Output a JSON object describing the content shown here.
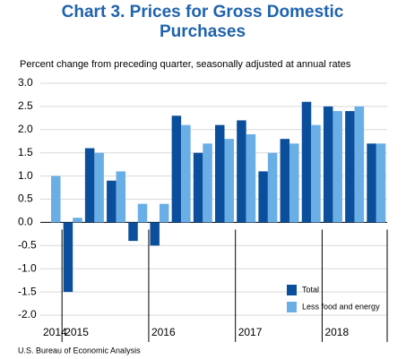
{
  "chart_data": {
    "type": "bar",
    "title": "Chart 3. Prices for Gross Domestic",
    "title_line2": "Purchases",
    "subtitle": "Percent change from preceding quarter, seasonally adjusted at annual rates",
    "source": "U.S. Bureau of Economic Analysis",
    "categories": [
      "2014",
      "2015",
      null,
      null,
      null,
      "2016",
      null,
      null,
      null,
      "2017",
      null,
      null,
      null,
      "2018",
      null,
      null
    ],
    "series": [
      {
        "name": "Total",
        "color": "#0b4f9c",
        "values": [
          0.0,
          -1.5,
          1.6,
          0.9,
          -0.4,
          -0.5,
          2.3,
          1.5,
          2.1,
          2.2,
          1.1,
          1.8,
          2.6,
          2.5,
          2.4,
          1.7
        ]
      },
      {
        "name": "Less food and energy",
        "color": "#6aaee6",
        "values": [
          1.0,
          0.1,
          1.5,
          1.1,
          0.4,
          0.4,
          2.1,
          1.7,
          1.8,
          1.9,
          1.5,
          1.7,
          2.1,
          2.4,
          2.5,
          1.7
        ]
      }
    ],
    "ylim": [
      -2.0,
      3.0
    ],
    "yticks": [
      {
        "value": 3,
        "label": "3.0"
      },
      {
        "value": 2.5,
        "label": "2.5"
      },
      {
        "value": 2,
        "label": "2.0"
      },
      {
        "value": 1.5,
        "label": "1.5"
      },
      {
        "value": 1,
        "label": "1.0"
      },
      {
        "value": 0.5,
        "label": "0.5"
      },
      {
        "value": 0,
        "label": "0.0"
      },
      {
        "value": -0.5,
        "label": "-0.5"
      },
      {
        "value": -1,
        "label": "-1.0"
      },
      {
        "value": -1.5,
        "label": "-1.5"
      },
      {
        "value": -2,
        "label": "-2.0"
      }
    ],
    "grid": true,
    "legend": "lower right"
  }
}
